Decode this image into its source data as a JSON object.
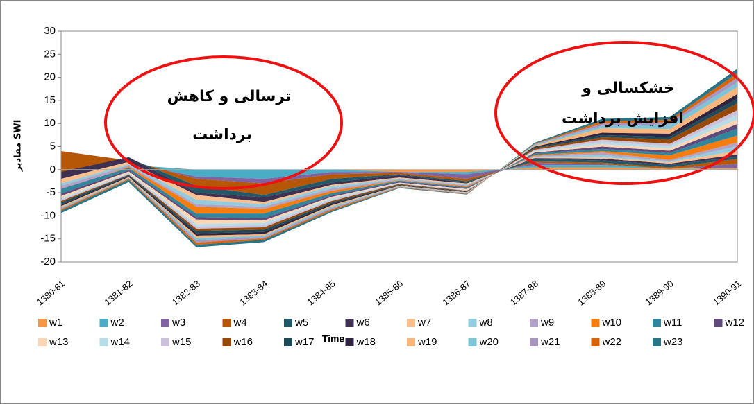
{
  "chart_data": {
    "type": "stacked-area",
    "x_label": "Time",
    "y_label": "مقادیر SWI",
    "annotations": [
      "ترسالی و کاهش",
      "برداشت",
      "خشکسالی و",
      "افزایش برداشت"
    ],
    "categories": [
      "1380-81",
      "1381-82",
      "1382-83",
      "1383-84",
      "1384-85",
      "1385-86",
      "1386-87",
      "1387-88",
      "1388-89",
      "1389-90",
      "1390-91"
    ],
    "ylim": [
      -20,
      30
    ],
    "yticks": [
      -20,
      -15,
      -10,
      -5,
      0,
      5,
      10,
      15,
      20,
      25,
      30
    ],
    "series": [
      {
        "name": "w1",
        "color": "#f79646",
        "values": [
          0.5,
          1.0,
          0,
          0,
          0,
          -0.5,
          -0.5,
          0.5,
          0.5,
          0.3,
          0.3
        ]
      },
      {
        "name": "w2",
        "color": "#4bacc6",
        "values": [
          0.5,
          0.5,
          -1.5,
          -2.0,
          -0.5,
          0,
          -0.5,
          0.5,
          0.5,
          0.2,
          0
        ]
      },
      {
        "name": "w3",
        "color": "#8064a2",
        "values": [
          3.0,
          0.5,
          -0.5,
          -1.0,
          -0.5,
          -0.2,
          -1.0,
          0.5,
          0.2,
          -0.3,
          1.0
        ]
      },
      {
        "name": "w4",
        "color": "#b65708",
        "values": [
          -5.0,
          0.5,
          -1.5,
          -2.5,
          -1.0,
          -0.3,
          -0.5,
          0.3,
          0.3,
          0.3,
          1.0
        ]
      },
      {
        "name": "w5",
        "color": "#215968",
        "values": [
          0.5,
          0.2,
          -1.5,
          -0.5,
          -0.8,
          -0.2,
          -0.3,
          0.5,
          0.5,
          0.5,
          0.5
        ]
      },
      {
        "name": "w6",
        "color": "#3f3151",
        "values": [
          -1.5,
          -1.0,
          -0.5,
          -1.0,
          -0.5,
          -0.5,
          -0.2,
          0.2,
          0.4,
          0.3,
          0.5
        ]
      },
      {
        "name": "w7",
        "color": "#fac090",
        "values": [
          -1.0,
          -0.5,
          -1.0,
          -0.5,
          -0.3,
          -0.2,
          -0.2,
          0.2,
          0.3,
          0.3,
          0.8
        ]
      },
      {
        "name": "w8",
        "color": "#93cddd",
        "values": [
          -0.5,
          -0.3,
          -1.0,
          -0.5,
          -0.5,
          -0.2,
          -0.2,
          0.1,
          0.5,
          0.2,
          1.0
        ]
      },
      {
        "name": "w9",
        "color": "#b3a2c7",
        "values": [
          -1.0,
          -0.3,
          -0.5,
          -0.5,
          -0.5,
          -0.2,
          -0.2,
          0.2,
          0.5,
          0.3,
          0.8
        ]
      },
      {
        "name": "w10",
        "color": "#f57d0f",
        "values": [
          0.3,
          -0.2,
          -1.5,
          -1.0,
          -0.5,
          -0.1,
          -0.2,
          0.2,
          0.3,
          1.0,
          1.5
        ]
      },
      {
        "name": "w11",
        "color": "#31859c",
        "values": [
          -1.0,
          -0.5,
          -0.8,
          -1.0,
          -0.5,
          -0.2,
          -0.2,
          0.3,
          0.5,
          0.5,
          1.5
        ]
      },
      {
        "name": "w12",
        "color": "#604a7b",
        "values": [
          -0.5,
          -0.3,
          -0.5,
          -0.5,
          -0.3,
          -0.2,
          -0.2,
          0.2,
          0.5,
          0.5,
          1.0
        ]
      },
      {
        "name": "w13",
        "color": "#fcd5b5",
        "values": [
          -0.5,
          -0.3,
          -1.0,
          -0.5,
          -0.3,
          -0.1,
          -0.2,
          0.2,
          0.5,
          0.5,
          1.0
        ]
      },
      {
        "name": "w14",
        "color": "#b7dee8",
        "values": [
          -0.3,
          -0.2,
          -0.5,
          -0.5,
          -0.3,
          -0.1,
          -0.1,
          0.2,
          0.5,
          0.5,
          1.0
        ]
      },
      {
        "name": "w15",
        "color": "#ccc1da",
        "values": [
          -0.3,
          -0.2,
          -0.5,
          -0.5,
          -0.3,
          -0.1,
          -0.1,
          0.2,
          0.5,
          0.5,
          1.0
        ]
      },
      {
        "name": "w16",
        "color": "#984807",
        "values": [
          -0.3,
          -0.1,
          -0.5,
          -0.5,
          -0.3,
          -0.2,
          -0.1,
          0.3,
          0.5,
          1.0,
          1.5
        ]
      },
      {
        "name": "w17",
        "color": "#1d4b5a",
        "values": [
          -0.5,
          -0.2,
          -0.5,
          -0.5,
          -0.3,
          -0.1,
          -0.1,
          0.2,
          0.5,
          0.5,
          1.0
        ]
      },
      {
        "name": "w18",
        "color": "#302540",
        "values": [
          -0.3,
          -0.2,
          -0.5,
          -0.5,
          -0.3,
          -0.1,
          -0.1,
          0.2,
          0.5,
          0.7,
          1.0
        ]
      },
      {
        "name": "w19",
        "color": "#fab67a",
        "values": [
          -0.3,
          -0.2,
          -0.5,
          -0.3,
          -0.3,
          -0.1,
          -0.1,
          0.2,
          1.0,
          1.0,
          1.5
        ]
      },
      {
        "name": "w20",
        "color": "#7fc4d6",
        "values": [
          -0.2,
          -0.1,
          -0.5,
          -0.3,
          -0.3,
          -0.1,
          -0.1,
          0.2,
          0.5,
          1.0,
          1.0
        ]
      },
      {
        "name": "w21",
        "color": "#a896c0",
        "values": [
          -0.2,
          -0.1,
          -0.5,
          -0.3,
          -0.3,
          -0.1,
          -0.1,
          0.1,
          0.5,
          0.5,
          1.0
        ]
      },
      {
        "name": "w22",
        "color": "#d8650c",
        "values": [
          -0.3,
          -0.2,
          -0.5,
          -0.3,
          -0.3,
          -0.1,
          -0.1,
          0.1,
          0.5,
          0.5,
          1.0
        ]
      },
      {
        "name": "w23",
        "color": "#2a7488",
        "values": [
          -0.5,
          -0.5,
          -0.5,
          -0.5,
          -0.3,
          -0.1,
          -0.1,
          0.2,
          0.5,
          0.6,
          1.0
        ]
      }
    ]
  }
}
